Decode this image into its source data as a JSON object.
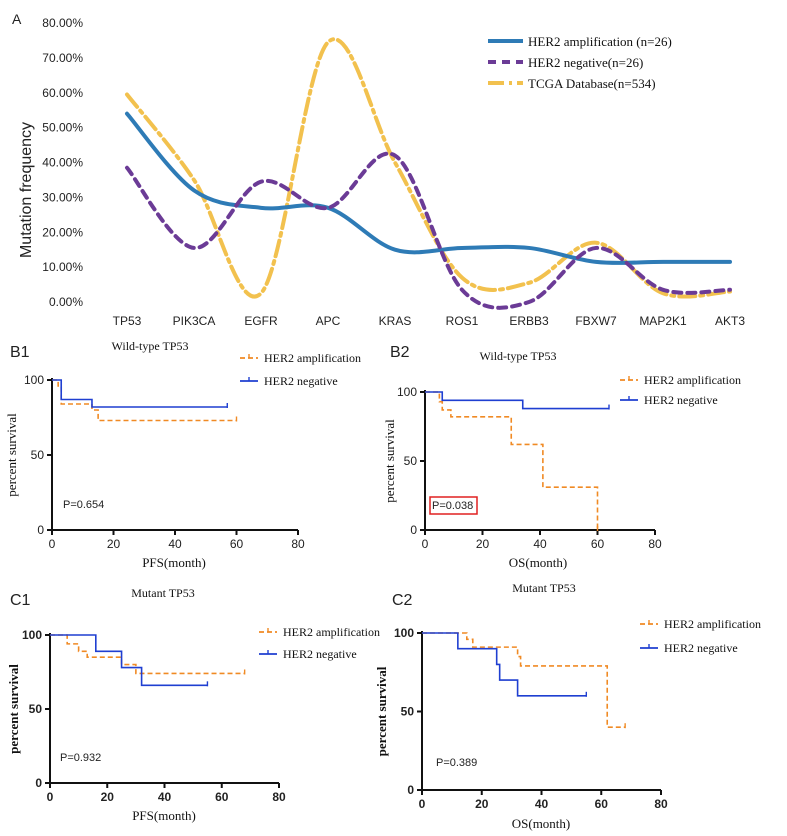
{
  "colors": {
    "amp": "#2e7bb6",
    "neg": "#6b3b96",
    "tcga": "#f2c14e",
    "km_amp": "#f08a24",
    "km_neg": "#1f3fd1",
    "pbox": "#e02020"
  },
  "chart_data": [
    {
      "panel": "A",
      "type": "line",
      "ylabel": "Mutation frequency",
      "ylim": [
        0,
        80
      ],
      "yticks": [
        "0.00%",
        "10.00%",
        "20.00%",
        "30.00%",
        "40.00%",
        "50.00%",
        "60.00%",
        "70.00%",
        "80.00%"
      ],
      "categories": [
        "TP53",
        "PIK3CA",
        "EGFR",
        "APC",
        "KRAS",
        "ROS1",
        "ERBB3",
        "FBXW7",
        "MAP2K1",
        "AKT3"
      ],
      "series": [
        {
          "name": "HER2 amplification (n=26)",
          "values": [
            54,
            32,
            27,
            27,
            15,
            15.5,
            15.5,
            11.5,
            11.5,
            11.5
          ]
        },
        {
          "name": "HER2 negative(n=26)",
          "values": [
            38.5,
            15.5,
            34.5,
            27,
            42,
            3.5,
            0,
            15.5,
            3.5,
            3.5
          ]
        },
        {
          "name": "TCGA Database(n=534)",
          "values": [
            59.5,
            35,
            2.5,
            74.5,
            40,
            7,
            5.5,
            17,
            2.5,
            3
          ]
        }
      ]
    },
    {
      "panel": "B1",
      "type": "line",
      "title": "Wild-type TP53",
      "xlabel": "PFS(month)",
      "ylabel": "percent survival",
      "xlim": [
        0,
        80
      ],
      "ylim": [
        0,
        100
      ],
      "xticks": [
        "0",
        "20",
        "40",
        "60",
        "80"
      ],
      "yticks": [
        "0",
        "50",
        "100"
      ],
      "pvalue": "P=0.654",
      "pbox": false,
      "series": [
        {
          "name": "HER2 amplification",
          "steps": [
            [
              0,
              100
            ],
            [
              2,
              100
            ],
            [
              2,
              96
            ],
            [
              3,
              96
            ],
            [
              3,
              84
            ],
            [
              13,
              84
            ],
            [
              13,
              80
            ],
            [
              15,
              80
            ],
            [
              15,
              73
            ],
            [
              60,
              73
            ]
          ]
        },
        {
          "name": "HER2 negative",
          "steps": [
            [
              0,
              100
            ],
            [
              3,
              100
            ],
            [
              3,
              87
            ],
            [
              13,
              87
            ],
            [
              13,
              82
            ],
            [
              57,
              82
            ]
          ]
        }
      ]
    },
    {
      "panel": "B2",
      "type": "line",
      "title": "Wild-type TP53",
      "xlabel": "OS(month)",
      "ylabel": "percent survival",
      "xlim": [
        0,
        80
      ],
      "ylim": [
        0,
        100
      ],
      "xticks": [
        "0",
        "20",
        "40",
        "60",
        "80"
      ],
      "yticks": [
        "0",
        "50",
        "100"
      ],
      "pvalue": "P=0.038",
      "pbox": true,
      "series": [
        {
          "name": "HER2 amplification",
          "steps": [
            [
              0,
              100
            ],
            [
              5,
              100
            ],
            [
              5,
              93
            ],
            [
              6,
              93
            ],
            [
              6,
              87
            ],
            [
              9,
              87
            ],
            [
              9,
              82
            ],
            [
              30,
              82
            ],
            [
              30,
              62
            ],
            [
              41,
              62
            ],
            [
              41,
              31
            ],
            [
              60,
              31
            ],
            [
              60,
              0
            ]
          ]
        },
        {
          "name": "HER2 negative",
          "steps": [
            [
              0,
              100
            ],
            [
              6,
              100
            ],
            [
              6,
              94
            ],
            [
              34,
              94
            ],
            [
              34,
              88
            ],
            [
              64,
              88
            ]
          ]
        }
      ]
    },
    {
      "panel": "C1",
      "type": "line",
      "title": "Mutant TP53",
      "xlabel": "PFS(month)",
      "ylabel": "percent survival",
      "xlim": [
        0,
        80
      ],
      "ylim": [
        0,
        100
      ],
      "xticks": [
        "0",
        "20",
        "40",
        "60",
        "80"
      ],
      "yticks": [
        "0",
        "50",
        "100"
      ],
      "pvalue": "P=0.932",
      "pbox": false,
      "series": [
        {
          "name": "HER2 amplification",
          "steps": [
            [
              0,
              100
            ],
            [
              6,
              100
            ],
            [
              6,
              94
            ],
            [
              10,
              94
            ],
            [
              10,
              89
            ],
            [
              13,
              89
            ],
            [
              13,
              85
            ],
            [
              25,
              85
            ],
            [
              25,
              80
            ],
            [
              30,
              80
            ],
            [
              30,
              74
            ],
            [
              68,
              74
            ]
          ]
        },
        {
          "name": "HER2 negative",
          "steps": [
            [
              0,
              100
            ],
            [
              16,
              100
            ],
            [
              16,
              89
            ],
            [
              25,
              89
            ],
            [
              25,
              78
            ],
            [
              32,
              78
            ],
            [
              32,
              66
            ],
            [
              55,
              66
            ]
          ]
        }
      ]
    },
    {
      "panel": "C2",
      "type": "line",
      "title": "Mutant TP53",
      "xlabel": "OS(month)",
      "ylabel": "percent survival",
      "xlim": [
        0,
        80
      ],
      "ylim": [
        0,
        100
      ],
      "xticks": [
        "0",
        "20",
        "40",
        "60",
        "80"
      ],
      "yticks": [
        "0",
        "50",
        "100"
      ],
      "pvalue": "P=0.389",
      "pbox": false,
      "series": [
        {
          "name": "HER2 amplification",
          "steps": [
            [
              0,
              100
            ],
            [
              15,
              100
            ],
            [
              15,
              96
            ],
            [
              17,
              96
            ],
            [
              17,
              91
            ],
            [
              32,
              91
            ],
            [
              32,
              85
            ],
            [
              33,
              85
            ],
            [
              33,
              79
            ],
            [
              62,
              79
            ],
            [
              62,
              40
            ],
            [
              68,
              40
            ]
          ]
        },
        {
          "name": "HER2 negative",
          "steps": [
            [
              0,
              100
            ],
            [
              12,
              100
            ],
            [
              12,
              90
            ],
            [
              25,
              90
            ],
            [
              25,
              80
            ],
            [
              26,
              80
            ],
            [
              26,
              70
            ],
            [
              32,
              70
            ],
            [
              32,
              60
            ],
            [
              55,
              60
            ]
          ]
        }
      ]
    }
  ],
  "panel_labels": [
    "A",
    "B1",
    "B2",
    "C1",
    "C2"
  ]
}
